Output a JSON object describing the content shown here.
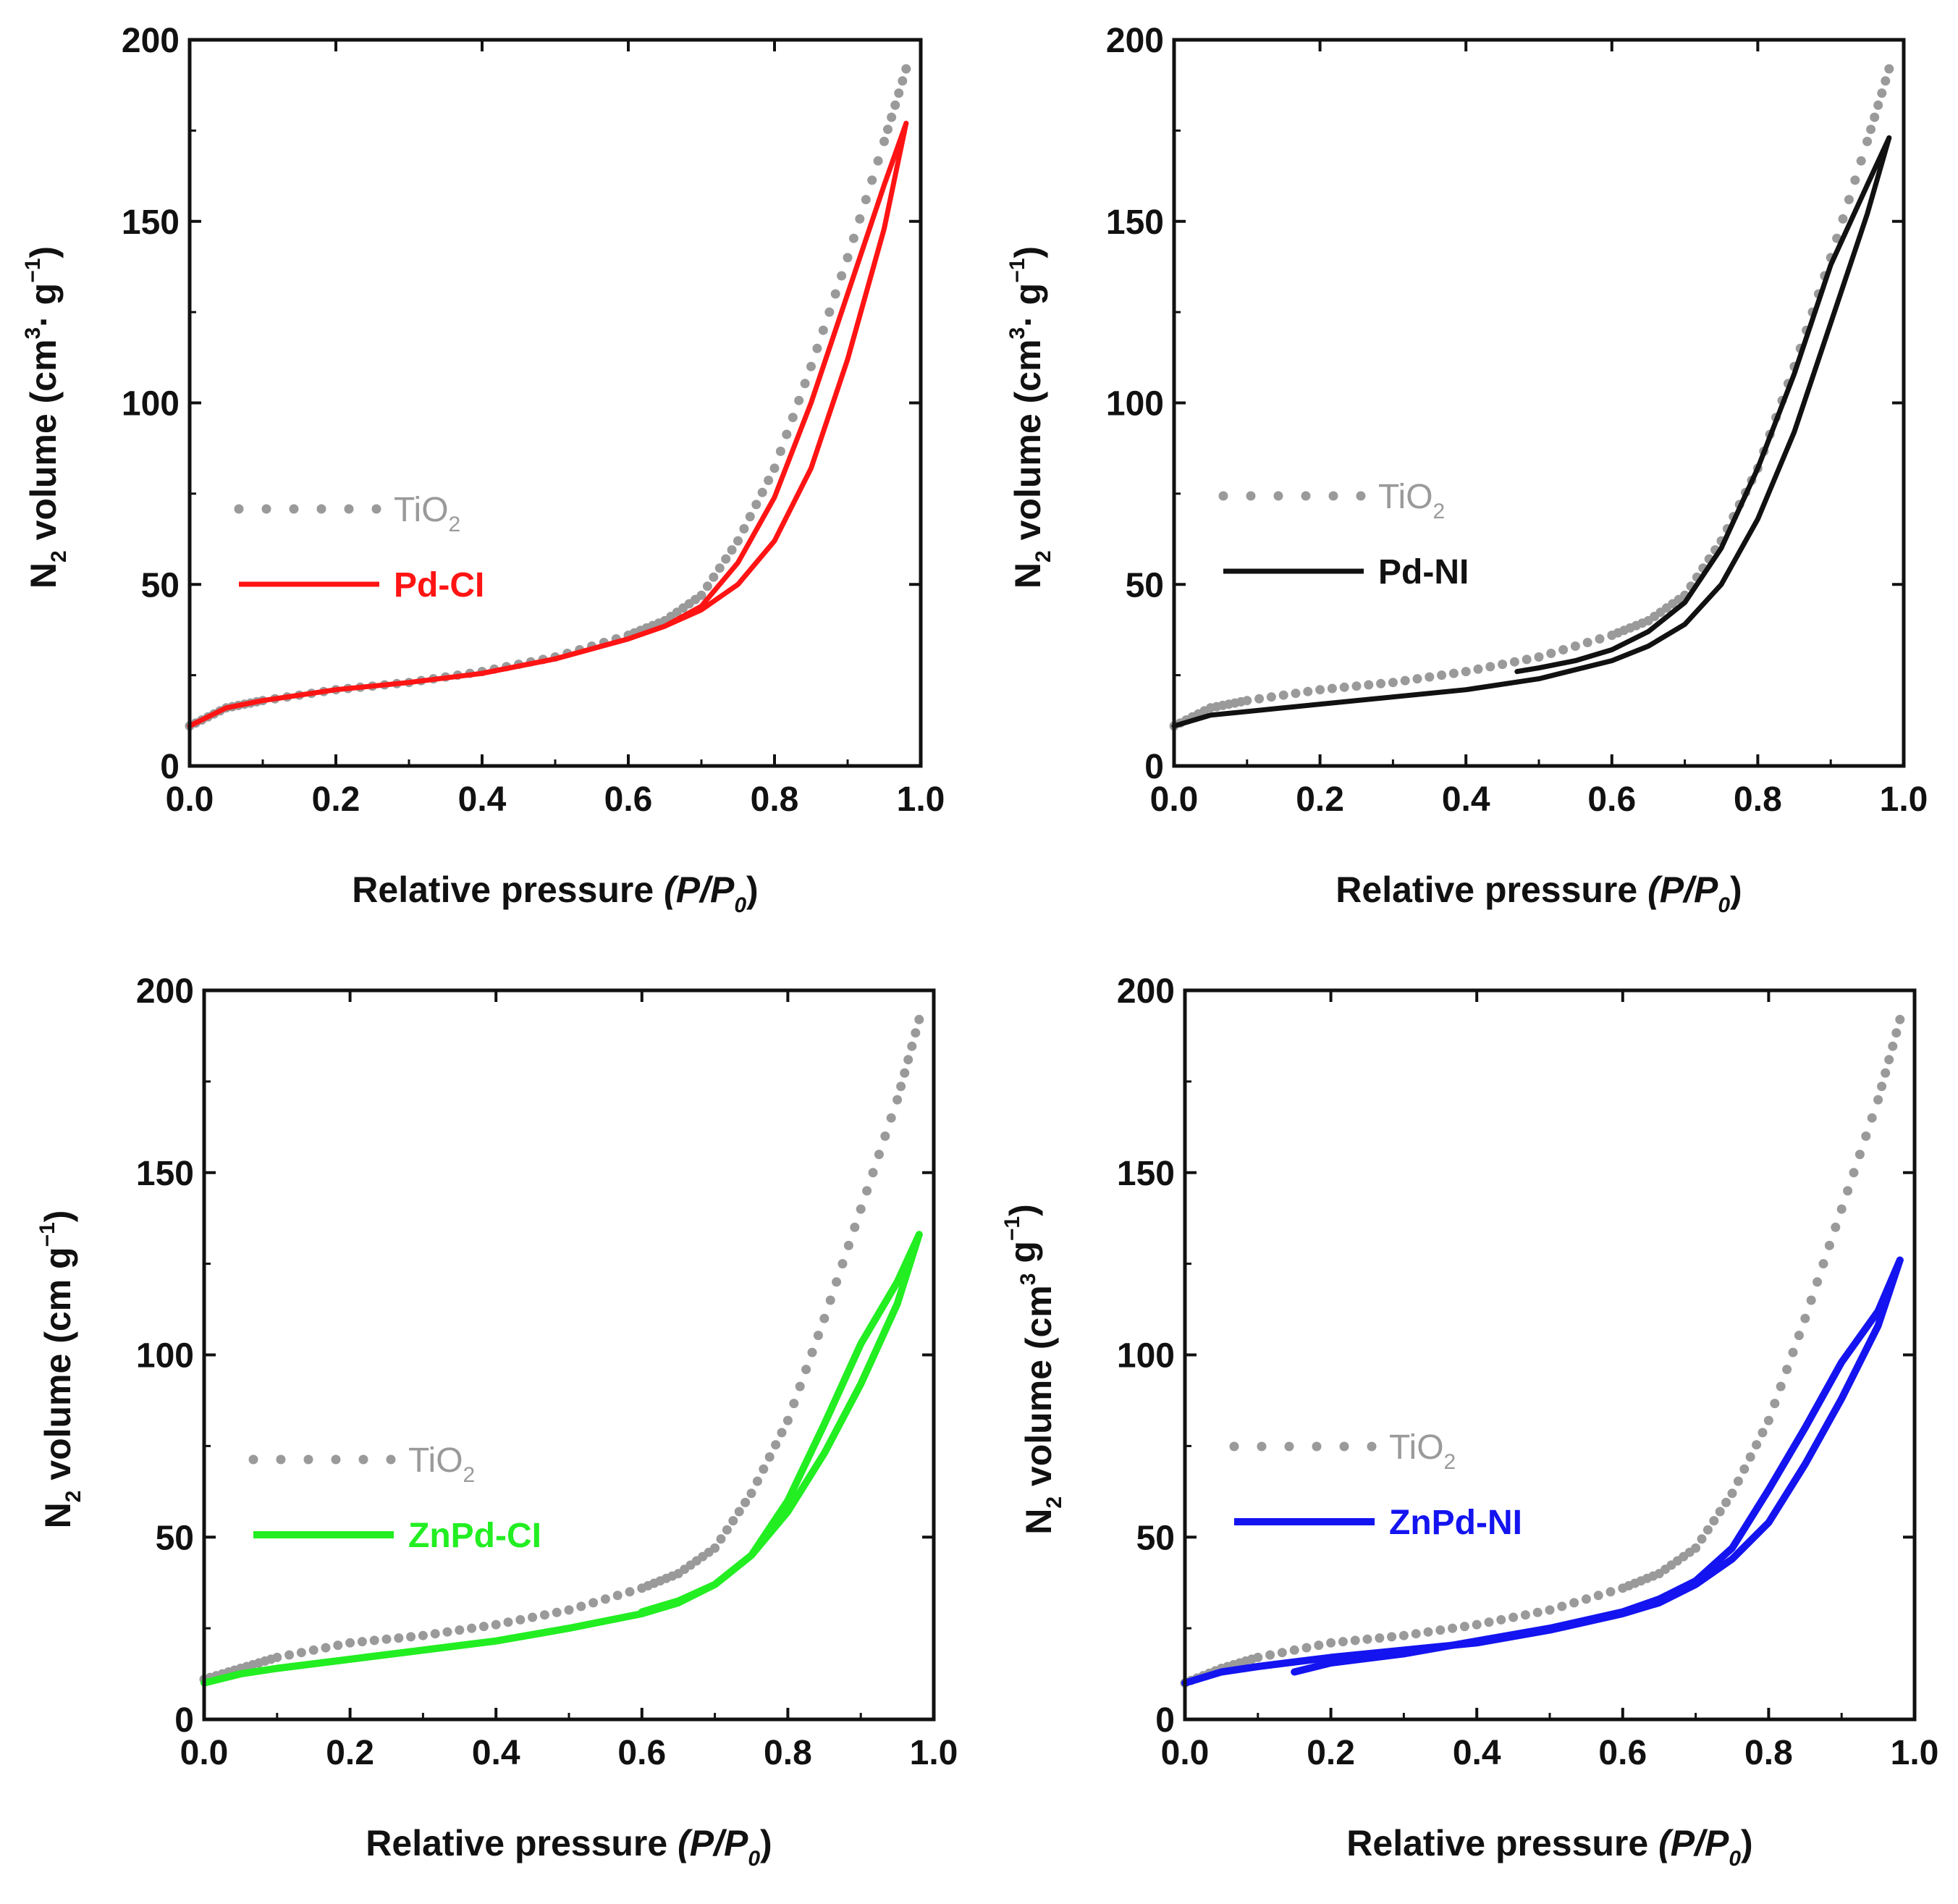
{
  "colors": {
    "reference": "#9a9a9a",
    "axis": "#111111"
  },
  "chart_data": [
    {
      "type": "line",
      "panel": "top-left",
      "xlabel": "Relative pressure",
      "xlabel_italic": "(P/P",
      "xlabel_sub": "0",
      "xlabel_close": ")",
      "ylabel": "N",
      "ylabel_sub": "2",
      "ylabel_mid": " volume (cm",
      "ylabel_sup": "3",
      "ylabel_dot": "·",
      "ylabel_unit": " g",
      "ylabel_unit_sup": "−1",
      "ylabel_close": ")",
      "xlim": [
        0,
        1.0
      ],
      "ylim": [
        0,
        200
      ],
      "xticks": [
        "0.0",
        "0.2",
        "0.4",
        "0.6",
        "0.8",
        "1.0"
      ],
      "yticks": [
        "0",
        "50",
        "100",
        "150",
        "200"
      ],
      "legend_position": "middle-left",
      "series": [
        {
          "name": "TiO",
          "name_sub": "2",
          "color": "#9a9a9a",
          "style": "dotted",
          "adsorption": {
            "x": [
              0.0,
              0.05,
              0.1,
              0.2,
              0.3,
              0.4,
              0.5,
              0.6,
              0.65,
              0.7,
              0.75,
              0.8,
              0.85,
              0.9,
              0.95,
              0.98
            ],
            "y": [
              11,
              16,
              18,
              21,
              23,
              26,
              30,
              36,
              40,
              47,
              62,
              82,
              110,
              140,
              172,
              192
            ]
          }
        },
        {
          "name": "Pd-CI",
          "color": "#ff1414",
          "style": "solid",
          "adsorption": {
            "x": [
              0.0,
              0.05,
              0.1,
              0.2,
              0.3,
              0.4,
              0.5,
              0.6,
              0.65,
              0.7,
              0.75,
              0.8,
              0.85,
              0.9,
              0.95,
              0.98
            ],
            "y": [
              11,
              16,
              18,
              21,
              23,
              25.5,
              29.5,
              35,
              38.5,
              43,
              50,
              62,
              82,
              112,
              148,
              177
            ]
          },
          "desorption": {
            "x": [
              0.98,
              0.95,
              0.9,
              0.85,
              0.8,
              0.75,
              0.7,
              0.65,
              0.6,
              0.5,
              0.4
            ],
            "y": [
              177,
              160,
              130,
              100,
              74,
              56,
              44,
              38.5,
              35,
              29.5,
              25.5
            ]
          }
        }
      ]
    },
    {
      "type": "line",
      "panel": "top-right",
      "xlabel": "Relative pressure",
      "xlabel_italic": "(P/P",
      "xlabel_sub": "0",
      "xlabel_close": ")",
      "ylabel": "N",
      "ylabel_sub": "2",
      "ylabel_mid": " volume (cm",
      "ylabel_sup": "3",
      "ylabel_dot": "·",
      "ylabel_unit": " g",
      "ylabel_unit_sup": "−1",
      "ylabel_close": ")",
      "xlim": [
        0,
        1.0
      ],
      "ylim": [
        0,
        200
      ],
      "xticks": [
        "0.0",
        "0.2",
        "0.4",
        "0.6",
        "0.8",
        "1.0"
      ],
      "yticks": [
        "0",
        "50",
        "100",
        "150",
        "200"
      ],
      "legend_position": "middle-left",
      "series": [
        {
          "name": "TiO",
          "name_sub": "2",
          "color": "#9a9a9a",
          "style": "dotted",
          "adsorption": {
            "x": [
              0.0,
              0.05,
              0.1,
              0.2,
              0.3,
              0.4,
              0.5,
              0.6,
              0.65,
              0.7,
              0.75,
              0.8,
              0.85,
              0.9,
              0.95,
              0.98
            ],
            "y": [
              11,
              16,
              18,
              21,
              23,
              26,
              30,
              36,
              40,
              47,
              62,
              82,
              110,
              140,
              172,
              192
            ]
          }
        },
        {
          "name": "Pd-NI",
          "color": "#111111",
          "style": "solid",
          "adsorption": {
            "x": [
              0.0,
              0.05,
              0.1,
              0.2,
              0.3,
              0.4,
              0.5,
              0.6,
              0.65,
              0.7,
              0.75,
              0.8,
              0.85,
              0.9,
              0.95,
              0.98
            ],
            "y": [
              11,
              14,
              15,
              17,
              19,
              21,
              24,
              29,
              33,
              39,
              50,
              68,
              92,
              122,
              152,
              173
            ]
          },
          "desorption": {
            "x": [
              0.98,
              0.95,
              0.9,
              0.85,
              0.8,
              0.75,
              0.7,
              0.65,
              0.6,
              0.55,
              0.5,
              0.47
            ],
            "y": [
              173,
              160,
              138,
              108,
              82,
              60,
              45,
              37,
              32,
              29,
              27,
              26
            ]
          }
        }
      ]
    },
    {
      "type": "line",
      "panel": "bottom-left",
      "xlabel": "Relative pressure",
      "xlabel_italic": "(P/P",
      "xlabel_sub": "0",
      "xlabel_close": ")",
      "ylabel": "N",
      "ylabel_sub": "2",
      "ylabel_mid": " volume (cm",
      "ylabel_sup": "",
      "ylabel_dot": "",
      "ylabel_unit": "  g",
      "ylabel_unit_sup": "−1",
      "ylabel_close": ")",
      "xlim": [
        0,
        1.0
      ],
      "ylim": [
        0,
        200
      ],
      "xticks": [
        "0.0",
        "0.2",
        "0.4",
        "0.6",
        "0.8",
        "1.0"
      ],
      "yticks": [
        "0",
        "50",
        "100",
        "150",
        "200"
      ],
      "legend_position": "middle-left",
      "series": [
        {
          "name": "TiO",
          "name_sub": "2",
          "color": "#9a9a9a",
          "style": "dotted",
          "adsorption": {
            "x": [
              0.0,
              0.05,
              0.1,
              0.2,
              0.3,
              0.4,
              0.5,
              0.6,
              0.65,
              0.7,
              0.75,
              0.8,
              0.85,
              0.9,
              0.95,
              0.98
            ],
            "y": [
              11,
              14,
              17,
              21,
              23,
              26,
              30,
              36,
              40,
              47,
              62,
              82,
              110,
              140,
              170,
              192
            ]
          }
        },
        {
          "name": "ZnPd-CI",
          "color": "#22ee22",
          "style": "solid",
          "adsorption": {
            "x": [
              0.0,
              0.05,
              0.1,
              0.2,
              0.3,
              0.4,
              0.5,
              0.6,
              0.65,
              0.7,
              0.75,
              0.8,
              0.85,
              0.9,
              0.95,
              0.98
            ],
            "y": [
              10,
              12.5,
              14,
              16.5,
              19,
              21.5,
              25,
              29,
              32,
              37,
              45,
              57,
              73,
              92,
              114,
              133
            ]
          },
          "desorption": {
            "x": [
              0.98,
              0.95,
              0.9,
              0.85,
              0.8,
              0.75,
              0.7,
              0.65,
              0.6
            ],
            "y": [
              133,
              120,
              103,
              81,
              60,
              45,
              37,
              32.5,
              29.5
            ]
          }
        }
      ]
    },
    {
      "type": "line",
      "panel": "bottom-right",
      "xlabel": "Relative pressure",
      "xlabel_italic": "(P/P",
      "xlabel_sub": "0",
      "xlabel_close": ")",
      "ylabel": "N",
      "ylabel_sub": "2",
      "ylabel_mid": " volume (cm",
      "ylabel_sup": "3",
      "ylabel_dot": "",
      "ylabel_unit": "  g",
      "ylabel_unit_sup": "−1",
      "ylabel_close": ")",
      "xlim": [
        0,
        1.0
      ],
      "ylim": [
        0,
        200
      ],
      "xticks": [
        "0.0",
        "0.2",
        "0.4",
        "0.6",
        "0.8",
        "1.0"
      ],
      "yticks": [
        "0",
        "50",
        "100",
        "150",
        "200"
      ],
      "legend_position": "middle-left",
      "series": [
        {
          "name": "TiO",
          "name_sub": "2",
          "color": "#9a9a9a",
          "style": "dotted",
          "adsorption": {
            "x": [
              0.0,
              0.05,
              0.1,
              0.2,
              0.3,
              0.4,
              0.5,
              0.6,
              0.65,
              0.7,
              0.75,
              0.8,
              0.85,
              0.9,
              0.95,
              0.98
            ],
            "y": [
              10,
              14,
              17,
              21,
              23,
              26,
              30,
              36,
              40,
              47,
              62,
              82,
              110,
              140,
              170,
              192
            ]
          }
        },
        {
          "name": "ZnPd-NI",
          "color": "#1414f0",
          "style": "solid",
          "adsorption": {
            "x": [
              0.0,
              0.05,
              0.1,
              0.2,
              0.3,
              0.4,
              0.5,
              0.6,
              0.65,
              0.7,
              0.75,
              0.8,
              0.85,
              0.9,
              0.95,
              0.98
            ],
            "y": [
              10,
              13,
              14.5,
              17,
              19,
              21,
              24.5,
              29,
              32,
              37,
              44,
              54,
              70,
              88,
              108,
              126
            ]
          },
          "desorption": {
            "x": [
              0.98,
              0.95,
              0.9,
              0.85,
              0.8,
              0.75,
              0.7,
              0.65,
              0.6,
              0.5,
              0.4,
              0.3,
              0.2,
              0.15
            ],
            "y": [
              126,
              112,
              98,
              80,
              63,
              47,
              38,
              33,
              29.5,
              25,
              21.5,
              18,
              15.5,
              13
            ]
          }
        }
      ]
    }
  ]
}
